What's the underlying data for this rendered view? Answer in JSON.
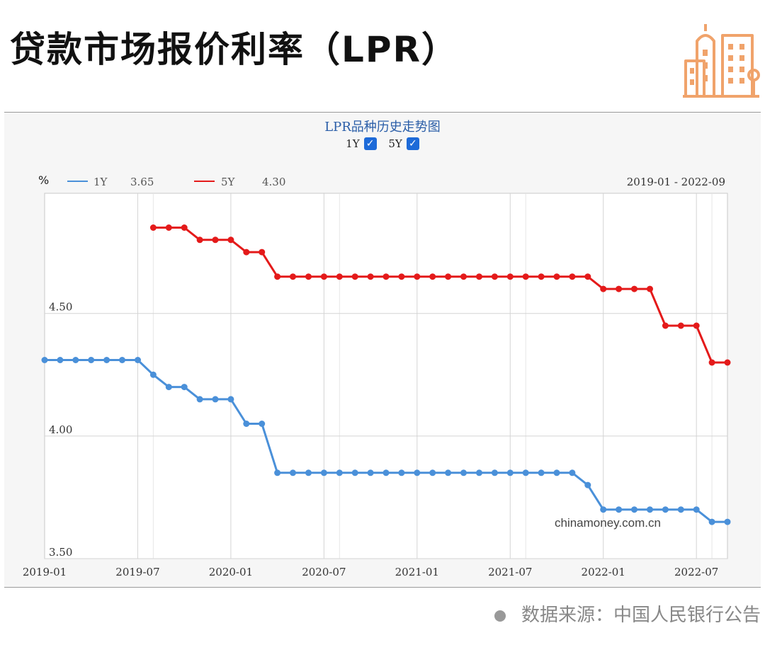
{
  "header": {
    "title": "贷款市场报价利率（LPR）",
    "logo_icon": "city-buildings-icon",
    "logo_color": "#f0a36b"
  },
  "footer": {
    "source": "数据来源：中国人民银行公告"
  },
  "chart_data": {
    "type": "line",
    "title": "LPR品种历史走势图",
    "toggles": [
      {
        "label": "1Y",
        "checked": true
      },
      {
        "label": "5Y",
        "checked": true
      }
    ],
    "ylabel": "%",
    "date_range": "2019-01 - 2022-09",
    "watermark": "chinamoney.com.cn",
    "ylim": [
      3.5,
      4.99
    ],
    "yticks": [
      "4.50",
      "4.00",
      "3.50"
    ],
    "xticks": [
      "2019-01",
      "2019-07",
      "2020-01",
      "2020-07",
      "2021-01",
      "2021-07",
      "2022-01",
      "2022-07"
    ],
    "grid": true,
    "legend": [
      {
        "name": "1Y",
        "latest": "3.65",
        "color": "#4a90d9"
      },
      {
        "name": "5Y",
        "latest": "4.30",
        "color": "#e41a1a"
      }
    ],
    "series": [
      {
        "name": "1Y",
        "color": "#4a90d9",
        "x": [
          "2019-01",
          "2019-02",
          "2019-03",
          "2019-04",
          "2019-05",
          "2019-06",
          "2019-07",
          "2019-08",
          "2019-09",
          "2019-10",
          "2019-11",
          "2019-12",
          "2020-01",
          "2020-02",
          "2020-03",
          "2020-04",
          "2020-05",
          "2020-06",
          "2020-07",
          "2020-08",
          "2020-09",
          "2020-10",
          "2020-11",
          "2020-12",
          "2021-01",
          "2021-02",
          "2021-03",
          "2021-04",
          "2021-05",
          "2021-06",
          "2021-07",
          "2021-08",
          "2021-09",
          "2021-10",
          "2021-11",
          "2021-12",
          "2022-01",
          "2022-02",
          "2022-03",
          "2022-04",
          "2022-05",
          "2022-06",
          "2022-07",
          "2022-08",
          "2022-09"
        ],
        "values": [
          4.31,
          4.31,
          4.31,
          4.31,
          4.31,
          4.31,
          4.31,
          4.25,
          4.2,
          4.2,
          4.15,
          4.15,
          4.15,
          4.05,
          4.05,
          3.85,
          3.85,
          3.85,
          3.85,
          3.85,
          3.85,
          3.85,
          3.85,
          3.85,
          3.85,
          3.85,
          3.85,
          3.85,
          3.85,
          3.85,
          3.85,
          3.85,
          3.85,
          3.85,
          3.85,
          3.8,
          3.7,
          3.7,
          3.7,
          3.7,
          3.7,
          3.7,
          3.7,
          3.65,
          3.65
        ]
      },
      {
        "name": "5Y",
        "color": "#e41a1a",
        "x": [
          "2019-08",
          "2019-09",
          "2019-10",
          "2019-11",
          "2019-12",
          "2020-01",
          "2020-02",
          "2020-03",
          "2020-04",
          "2020-05",
          "2020-06",
          "2020-07",
          "2020-08",
          "2020-09",
          "2020-10",
          "2020-11",
          "2020-12",
          "2021-01",
          "2021-02",
          "2021-03",
          "2021-04",
          "2021-05",
          "2021-06",
          "2021-07",
          "2021-08",
          "2021-09",
          "2021-10",
          "2021-11",
          "2021-12",
          "2022-01",
          "2022-02",
          "2022-03",
          "2022-04",
          "2022-05",
          "2022-06",
          "2022-07",
          "2022-08",
          "2022-09"
        ],
        "values": [
          4.85,
          4.85,
          4.85,
          4.8,
          4.8,
          4.8,
          4.75,
          4.75,
          4.65,
          4.65,
          4.65,
          4.65,
          4.65,
          4.65,
          4.65,
          4.65,
          4.65,
          4.65,
          4.65,
          4.65,
          4.65,
          4.65,
          4.65,
          4.65,
          4.65,
          4.65,
          4.65,
          4.65,
          4.65,
          4.6,
          4.6,
          4.6,
          4.6,
          4.45,
          4.45,
          4.45,
          4.3,
          4.3
        ]
      }
    ]
  }
}
